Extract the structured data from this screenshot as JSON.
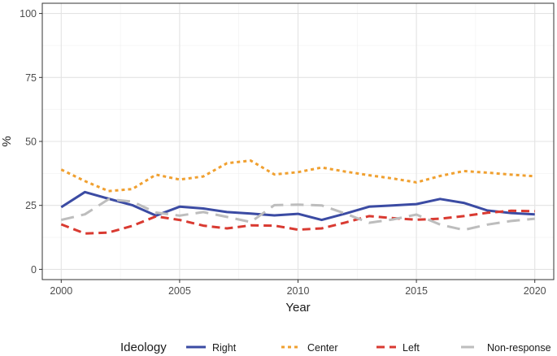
{
  "chart_data": {
    "type": "line",
    "xlabel": "Year",
    "ylabel": "%",
    "xlim": [
      1999.2,
      2020.8
    ],
    "ylim": [
      -4,
      104
    ],
    "x_ticks": [
      2000,
      2005,
      2010,
      2015,
      2020
    ],
    "y_ticks": [
      0,
      25,
      50,
      75,
      100
    ],
    "grid": true,
    "legend": {
      "title": "Ideology",
      "position": "bottom"
    },
    "x": [
      2000,
      2001,
      2002,
      2003,
      2004,
      2005,
      2006,
      2007,
      2008,
      2009,
      2010,
      2011,
      2012,
      2013,
      2014,
      2015,
      2016,
      2017,
      2018,
      2019,
      2020
    ],
    "series": [
      {
        "name": "Right",
        "color": "#3b4ba3",
        "dash": "solid",
        "values": [
          24.3,
          30.2,
          27.6,
          25.1,
          21.0,
          24.5,
          23.8,
          22.4,
          21.8,
          21.1,
          21.7,
          19.3,
          21.8,
          24.5,
          25.0,
          25.5,
          27.5,
          26.0,
          23.0,
          22.0,
          21.5
        ]
      },
      {
        "name": "Center",
        "color": "#f0a030",
        "dash": "dotted",
        "values": [
          39.0,
          34.5,
          30.6,
          31.4,
          37.0,
          35.1,
          36.3,
          41.5,
          42.5,
          37.1,
          38.0,
          39.8,
          38.2,
          36.8,
          35.5,
          34.0,
          36.5,
          38.4,
          37.8,
          37.0,
          36.4
        ]
      },
      {
        "name": "Left",
        "color": "#d93a31",
        "dash": "dashed",
        "values": [
          17.6,
          14.0,
          14.4,
          17.0,
          20.7,
          19.3,
          17.1,
          16.0,
          17.2,
          17.1,
          15.5,
          16.0,
          18.3,
          20.8,
          20.0,
          19.4,
          19.8,
          20.8,
          22.1,
          22.9,
          22.7
        ]
      },
      {
        "name": "Non-response",
        "color": "#bdbdbd",
        "dash": "longdash",
        "values": [
          19.3,
          21.5,
          27.4,
          26.5,
          22.2,
          21.0,
          22.4,
          20.5,
          18.5,
          25.1,
          25.3,
          25.0,
          21.8,
          18.2,
          19.5,
          21.4,
          17.5,
          15.4,
          17.5,
          18.9,
          19.8
        ]
      }
    ]
  }
}
